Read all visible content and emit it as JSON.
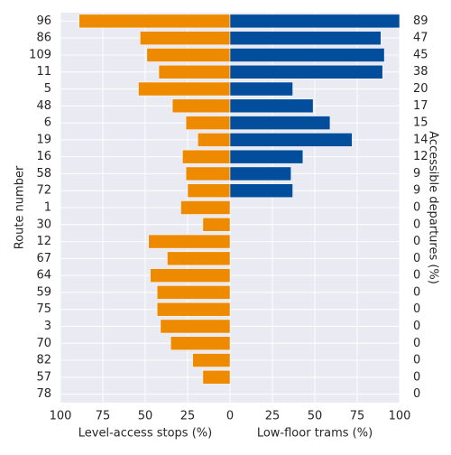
{
  "chart_data": {
    "type": "butterfly",
    "y_label": "Route number",
    "y2_label": "Accessible departures (%)",
    "categories": [
      "96",
      "86",
      "109",
      "11",
      "5",
      "48",
      "6",
      "19",
      "16",
      "58",
      "72",
      "1",
      "30",
      "12",
      "67",
      "64",
      "59",
      "75",
      "3",
      "70",
      "82",
      "57",
      "78"
    ],
    "y2_values": [
      89,
      47,
      45,
      38,
      20,
      17,
      15,
      14,
      12,
      9,
      9,
      0,
      0,
      0,
      0,
      0,
      0,
      0,
      0,
      0,
      0,
      0,
      0
    ],
    "grid": true,
    "series": [
      {
        "name": "Level-access stops (%)",
        "color": "#ee8a00",
        "side": "left",
        "xlim": [
          100,
          0
        ],
        "xticks": [
          100,
          75,
          50,
          25
        ],
        "values": [
          89,
          53,
          49,
          42,
          54,
          34,
          26,
          19,
          28,
          26,
          25,
          29,
          16,
          48,
          37,
          47,
          43,
          43,
          41,
          35,
          22,
          16,
          0
        ]
      },
      {
        "name": "Low-floor trams (%)",
        "color": "#034e9c",
        "side": "right",
        "xlim": [
          0,
          100
        ],
        "xticks": [
          0,
          25,
          50,
          75,
          100
        ],
        "values": [
          100,
          89,
          91,
          90,
          37,
          49,
          59,
          72,
          43,
          36,
          37,
          0,
          0,
          0,
          0,
          0,
          0,
          0,
          0,
          0,
          0,
          0,
          0
        ]
      }
    ]
  }
}
